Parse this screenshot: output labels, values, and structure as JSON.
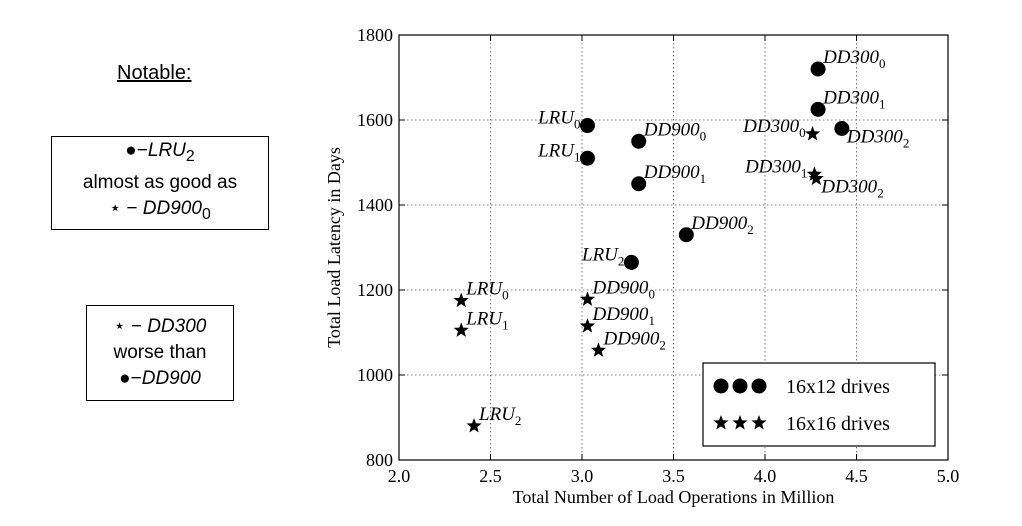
{
  "notes": {
    "title": "Notable:",
    "box1": {
      "line1_glyph": "●",
      "line1_dash": "−",
      "line1_label": "LRU",
      "line1_sub": "2",
      "line2": "almost as good as",
      "line3_glyph": "⋆",
      "line3_dash": " − ",
      "line3_label": "DD900",
      "line3_sub": "0"
    },
    "box2": {
      "line1_glyph": "⋆",
      "line1_dash": " − ",
      "line1_label": "DD300",
      "line2": "worse than",
      "line3_glyph": "●",
      "line3_dash": "−",
      "line3_label": "DD900"
    }
  },
  "chart_data": {
    "type": "scatter",
    "xlabel": "Total Number of Load Operations in Million",
    "ylabel": "Total Load Latency in Days",
    "xlim": [
      2.0,
      5.0
    ],
    "ylim": [
      800,
      1800
    ],
    "xticks": [
      "2.0",
      "2.5",
      "3.0",
      "3.5",
      "4.0",
      "4.5",
      "5.0"
    ],
    "yticks": [
      "800",
      "1000",
      "1200",
      "1400",
      "1600",
      "1800"
    ],
    "grid": true,
    "legend_position": "bottom-right",
    "series": [
      {
        "name": "16x12 drives",
        "marker": "circle",
        "points": [
          {
            "label": "LRU",
            "sub": "0",
            "x": 3.03,
            "y": 1587,
            "anchor": "left"
          },
          {
            "label": "LRU",
            "sub": "1",
            "x": 3.03,
            "y": 1510,
            "anchor": "left"
          },
          {
            "label": "LRU",
            "sub": "2",
            "x": 3.27,
            "y": 1265,
            "anchor": "left"
          },
          {
            "label": "DD900",
            "sub": "0",
            "x": 3.31,
            "y": 1550,
            "anchor": "right"
          },
          {
            "label": "DD900",
            "sub": "1",
            "x": 3.31,
            "y": 1450,
            "anchor": "right"
          },
          {
            "label": "DD900",
            "sub": "2",
            "x": 3.57,
            "y": 1330,
            "anchor": "right"
          },
          {
            "label": "DD300",
            "sub": "0",
            "x": 4.29,
            "y": 1720,
            "anchor": "right"
          },
          {
            "label": "DD300",
            "sub": "1",
            "x": 4.29,
            "y": 1625,
            "anchor": "right"
          },
          {
            "label": "DD300",
            "sub": "2",
            "x": 4.42,
            "y": 1580,
            "anchor": "right-below"
          }
        ]
      },
      {
        "name": "16x16 drives",
        "marker": "star",
        "points": [
          {
            "label": "LRU",
            "sub": "0",
            "x": 2.34,
            "y": 1175,
            "anchor": "right"
          },
          {
            "label": "LRU",
            "sub": "1",
            "x": 2.34,
            "y": 1105,
            "anchor": "right"
          },
          {
            "label": "LRU",
            "sub": "2",
            "x": 2.41,
            "y": 880,
            "anchor": "right"
          },
          {
            "label": "DD900",
            "sub": "0",
            "x": 3.03,
            "y": 1178,
            "anchor": "right"
          },
          {
            "label": "DD900",
            "sub": "1",
            "x": 3.03,
            "y": 1115,
            "anchor": "right"
          },
          {
            "label": "DD900",
            "sub": "2",
            "x": 3.09,
            "y": 1058,
            "anchor": "right"
          },
          {
            "label": "DD300",
            "sub": "0",
            "x": 4.26,
            "y": 1567,
            "anchor": "left"
          },
          {
            "label": "DD300",
            "sub": "1",
            "x": 4.27,
            "y": 1472,
            "anchor": "left"
          },
          {
            "label": "DD300",
            "sub": "2",
            "x": 4.28,
            "y": 1462,
            "anchor": "right-below"
          }
        ]
      }
    ]
  }
}
